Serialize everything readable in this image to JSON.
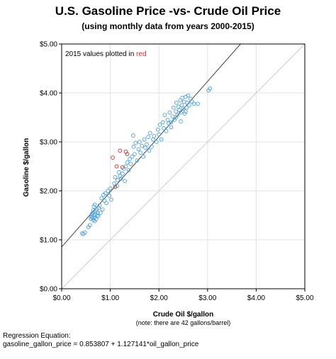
{
  "chart_data": {
    "type": "scatter",
    "title": "U.S. Gasoline Price -vs- Crude Oil Price",
    "subtitle": "(using monthly data from years 2000-2015)",
    "xlabel": "Crude Oil $/gallon",
    "xlabel_note": "(note: there are 42 gallons/barrel)",
    "ylabel": "Gasoline $/gallon",
    "xlim": [
      0,
      5
    ],
    "ylim": [
      0,
      5
    ],
    "x_ticks": [
      "$0.00",
      "$1.00",
      "$2.00",
      "$3.00",
      "$4.00",
      "$5.00"
    ],
    "y_ticks": [
      "$0.00",
      "$1.00",
      "$2.00",
      "$3.00",
      "$4.00",
      "$5.00"
    ],
    "grid": true,
    "annotation": {
      "prefix": "2015 values plotted in ",
      "highlight": "red"
    },
    "regression": {
      "label": "Regression Equation:",
      "equation": "gasoline_gallon_price =  0.853807 + 1.127141*oil_gallon_price",
      "intercept": 0.853807,
      "slope": 1.127141
    },
    "reference_line": "y = x",
    "colors": {
      "points": "#4a9fe0",
      "highlight": "#d62728",
      "regression_line": "#444444",
      "reference_line": "#cccccc"
    },
    "series": [
      {
        "values": [
          [
            0.42,
            1.13
          ],
          [
            0.45,
            1.12
          ],
          [
            0.48,
            1.15
          ],
          [
            0.55,
            1.26
          ],
          [
            0.58,
            1.3
          ],
          [
            0.6,
            1.43
          ],
          [
            0.61,
            1.47
          ],
          [
            0.62,
            1.52
          ],
          [
            0.63,
            1.45
          ],
          [
            0.64,
            1.55
          ],
          [
            0.65,
            1.4
          ],
          [
            0.65,
            1.6
          ],
          [
            0.66,
            1.5
          ],
          [
            0.66,
            1.68
          ],
          [
            0.67,
            1.45
          ],
          [
            0.68,
            1.72
          ],
          [
            0.68,
            1.38
          ],
          [
            0.69,
            1.52
          ],
          [
            0.7,
            1.58
          ],
          [
            0.71,
            1.42
          ],
          [
            0.72,
            1.62
          ],
          [
            0.73,
            1.5
          ],
          [
            0.74,
            1.55
          ],
          [
            0.75,
            1.48
          ],
          [
            0.76,
            1.65
          ],
          [
            0.78,
            1.7
          ],
          [
            0.8,
            1.55
          ],
          [
            0.82,
            1.85
          ],
          [
            0.84,
            1.62
          ],
          [
            0.86,
            1.92
          ],
          [
            0.88,
            1.8
          ],
          [
            0.9,
            1.95
          ],
          [
            0.92,
            1.75
          ],
          [
            0.95,
            2.0
          ],
          [
            0.98,
            1.9
          ],
          [
            1.0,
            2.05
          ],
          [
            1.02,
            1.82
          ],
          [
            1.08,
            2.15
          ],
          [
            1.1,
            2.28
          ],
          [
            1.14,
            2.1
          ],
          [
            1.15,
            2.22
          ],
          [
            1.18,
            2.38
          ],
          [
            1.2,
            2.3
          ],
          [
            1.22,
            2.25
          ],
          [
            1.25,
            2.35
          ],
          [
            1.28,
            2.45
          ],
          [
            1.3,
            2.2
          ],
          [
            1.32,
            2.5
          ],
          [
            1.35,
            2.58
          ],
          [
            1.38,
            2.42
          ],
          [
            1.4,
            2.65
          ],
          [
            1.42,
            2.55
          ],
          [
            1.45,
            2.7
          ],
          [
            1.47,
            3.13
          ],
          [
            1.48,
            2.9
          ],
          [
            1.5,
            2.75
          ],
          [
            1.52,
            2.98
          ],
          [
            1.55,
            2.62
          ],
          [
            1.58,
            2.85
          ],
          [
            1.6,
            3.0
          ],
          [
            1.62,
            2.78
          ],
          [
            1.65,
            2.92
          ],
          [
            1.68,
            2.7
          ],
          [
            1.7,
            3.05
          ],
          [
            1.72,
            2.88
          ],
          [
            1.75,
            2.95
          ],
          [
            1.78,
            3.1
          ],
          [
            1.8,
            2.82
          ],
          [
            1.82,
            3.18
          ],
          [
            1.85,
            2.9
          ],
          [
            1.88,
            3.05
          ],
          [
            1.9,
            3.12
          ],
          [
            1.95,
            3.0
          ],
          [
            1.98,
            3.25
          ],
          [
            2.0,
            3.15
          ],
          [
            2.02,
            3.35
          ],
          [
            2.05,
            3.05
          ],
          [
            2.08,
            3.4
          ],
          [
            2.1,
            3.28
          ],
          [
            2.12,
            3.55
          ],
          [
            2.15,
            3.22
          ],
          [
            2.18,
            3.45
          ],
          [
            2.2,
            3.38
          ],
          [
            2.22,
            3.6
          ],
          [
            2.25,
            3.3
          ],
          [
            2.28,
            3.52
          ],
          [
            2.3,
            3.7
          ],
          [
            2.32,
            3.45
          ],
          [
            2.35,
            3.62
          ],
          [
            2.36,
            3.8
          ],
          [
            2.38,
            3.55
          ],
          [
            2.4,
            3.72
          ],
          [
            2.42,
            3.65
          ],
          [
            2.44,
            3.85
          ],
          [
            2.45,
            3.6
          ],
          [
            2.47,
            3.75
          ],
          [
            2.48,
            3.9
          ],
          [
            2.5,
            3.68
          ],
          [
            2.52,
            3.82
          ],
          [
            2.53,
            3.58
          ],
          [
            2.55,
            3.92
          ],
          [
            2.57,
            3.7
          ],
          [
            2.58,
            3.8
          ],
          [
            2.6,
            3.95
          ],
          [
            2.62,
            3.75
          ],
          [
            2.65,
            3.88
          ],
          [
            2.68,
            3.82
          ],
          [
            2.72,
            3.78
          ],
          [
            2.8,
            3.78
          ],
          [
            3.02,
            4.05
          ],
          [
            3.05,
            4.09
          ],
          [
            2.35,
            3.5
          ],
          [
            2.45,
            3.42
          ],
          [
            2.55,
            3.62
          ],
          [
            2.25,
            3.4
          ]
        ]
      },
      {
        "name": "2015",
        "values": [
          [
            1.05,
            2.68
          ],
          [
            1.13,
            2.5
          ],
          [
            1.2,
            2.82
          ],
          [
            1.25,
            2.48
          ],
          [
            1.32,
            2.8
          ],
          [
            1.35,
            2.75
          ],
          [
            1.1,
            2.08
          ]
        ]
      }
    ]
  }
}
